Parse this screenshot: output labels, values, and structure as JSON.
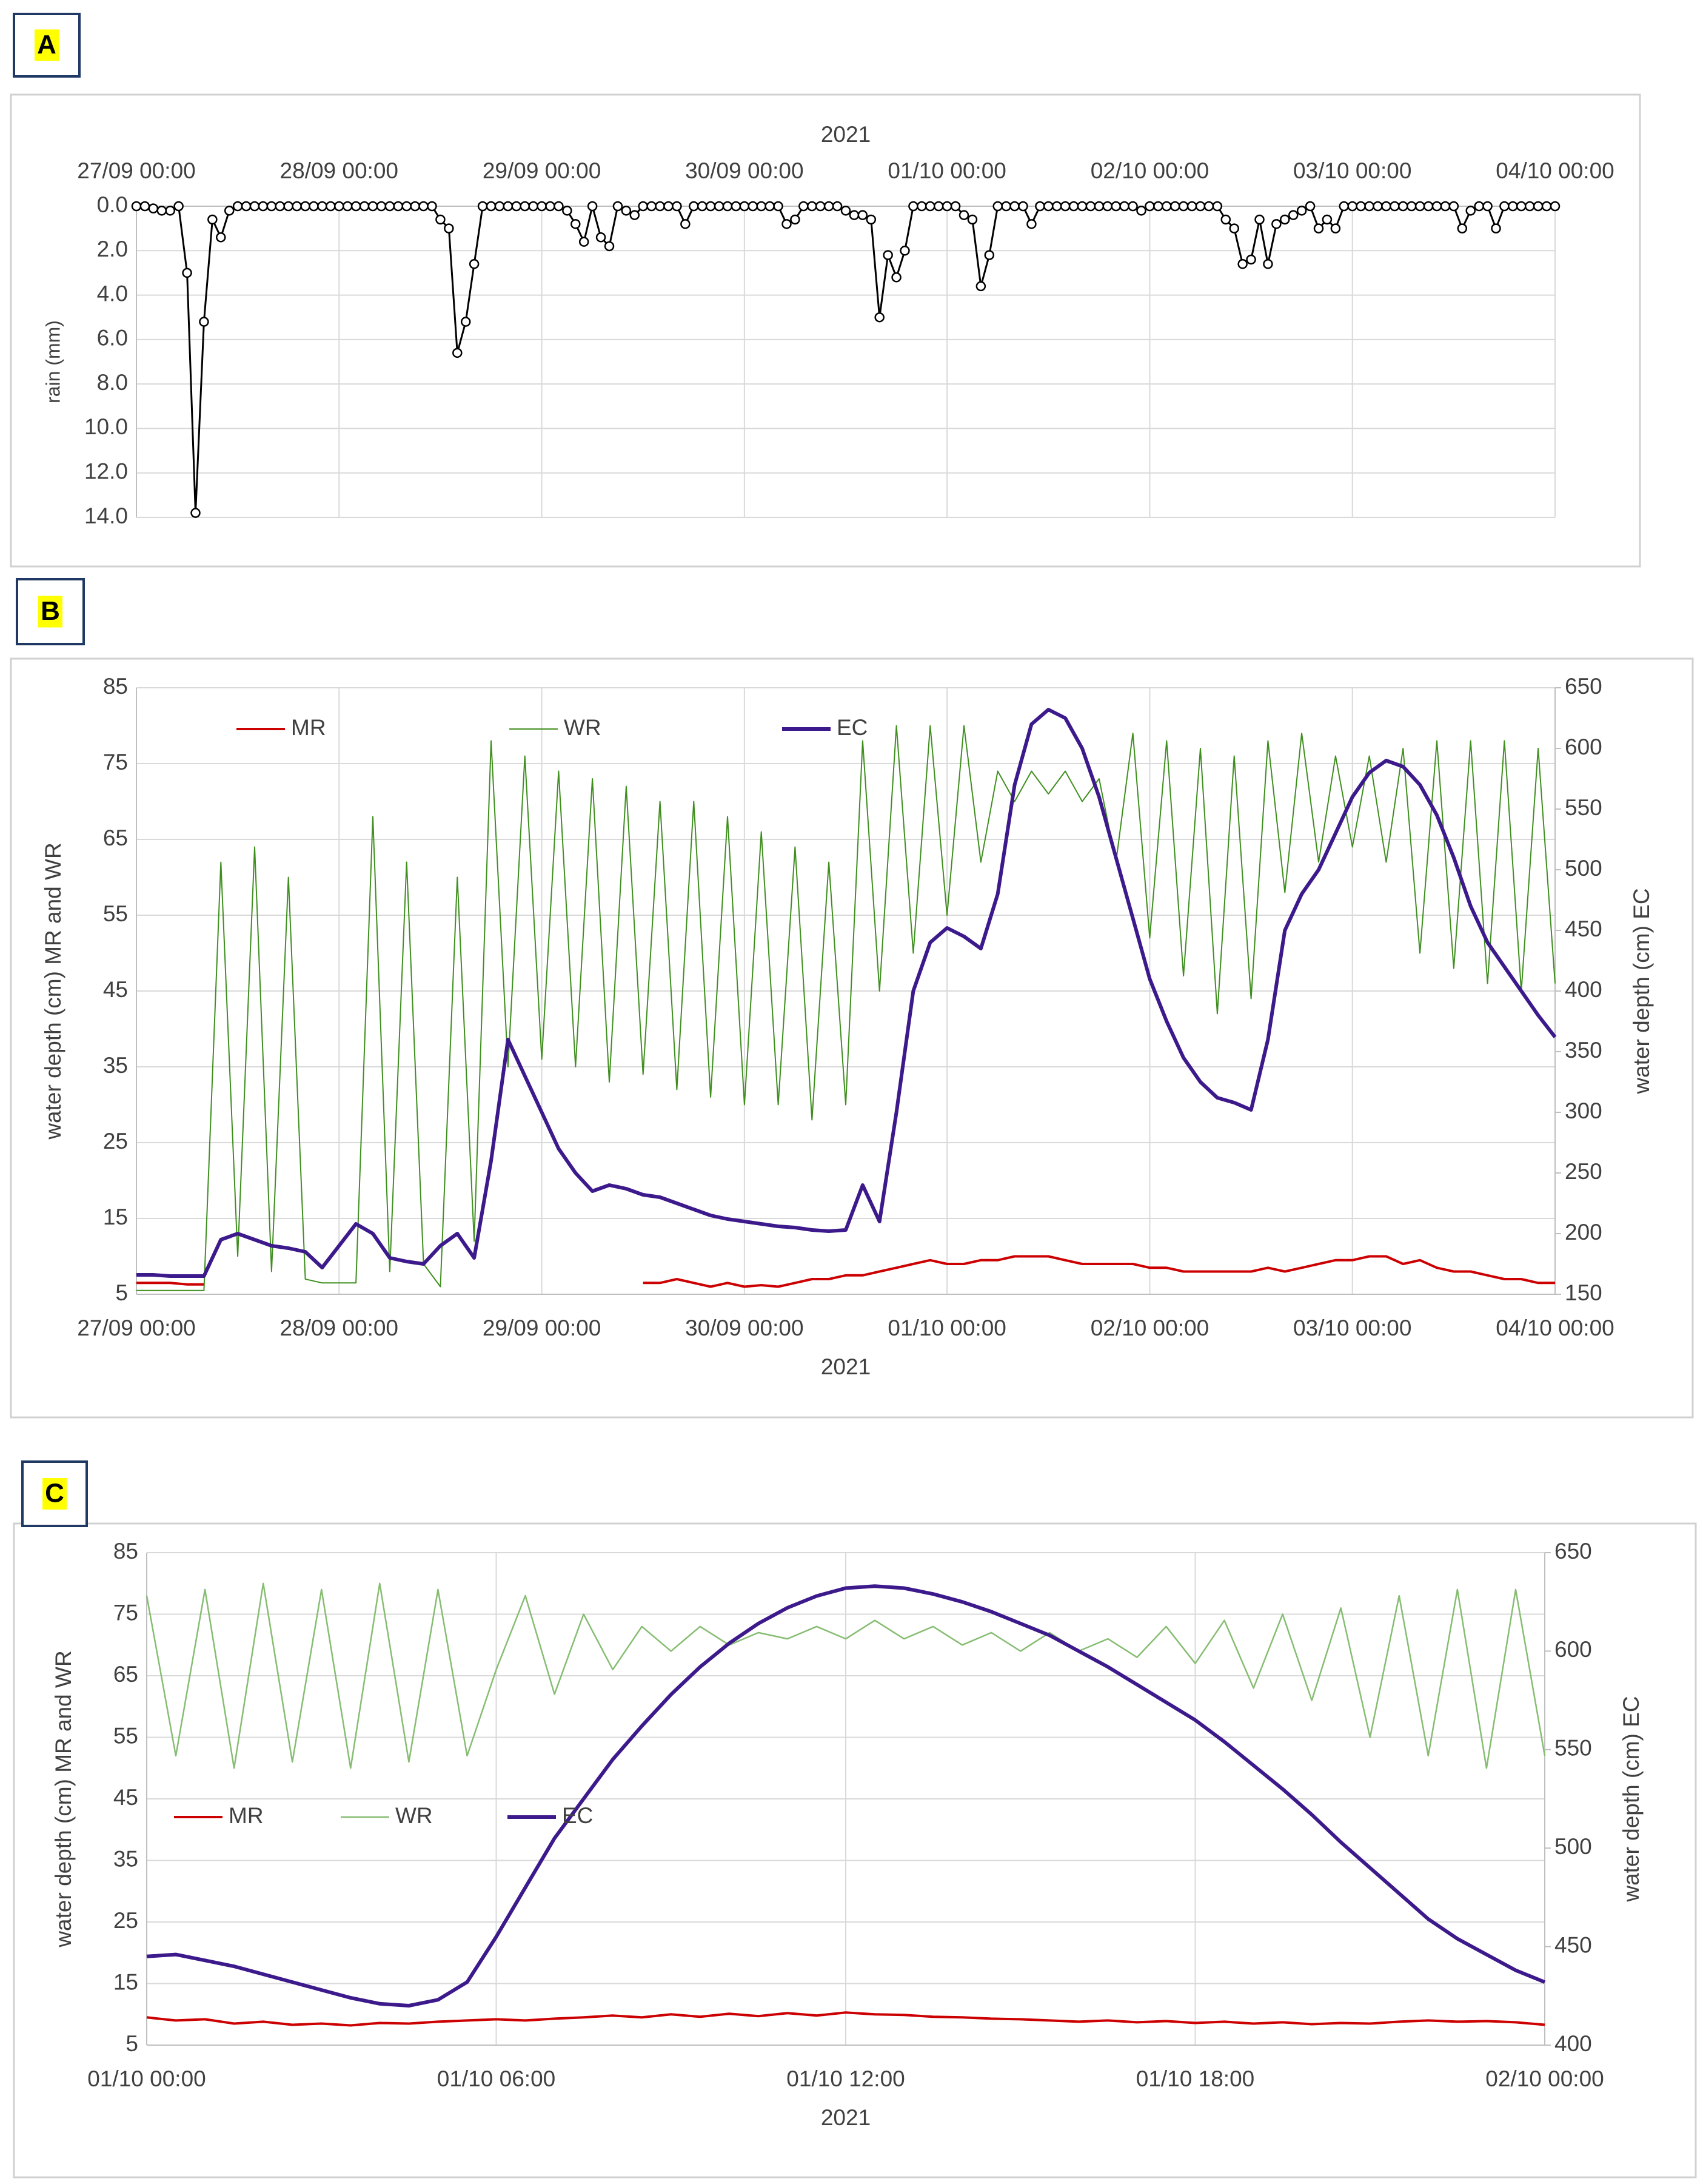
{
  "chart_data": [
    {
      "type": "line",
      "panel": "A",
      "x_title": "2021",
      "y_title": "rain (mm)",
      "xaxis_position": "top",
      "y_inverted": true,
      "grid": true,
      "markers": true,
      "xlim": [
        0,
        168
      ],
      "xticks": [
        {
          "value": 0,
          "label": "27/09 00:00"
        },
        {
          "value": 24,
          "label": "28/09 00:00"
        },
        {
          "value": 48,
          "label": "29/09 00:00"
        },
        {
          "value": 72,
          "label": "30/09 00:00"
        },
        {
          "value": 96,
          "label": "01/10 00:00"
        },
        {
          "value": 120,
          "label": "02/10 00:00"
        },
        {
          "value": 144,
          "label": "03/10 00:00"
        },
        {
          "value": 168,
          "label": "04/10 00:00"
        }
      ],
      "ylim": [
        0,
        14
      ],
      "yticks": [
        {
          "value": 0,
          "label": "0.0"
        },
        {
          "value": 2,
          "label": "2.0"
        },
        {
          "value": 4,
          "label": "4.0"
        },
        {
          "value": 6,
          "label": "6.0"
        },
        {
          "value": 8,
          "label": "8.0"
        },
        {
          "value": 10,
          "label": "10.0"
        },
        {
          "value": 12,
          "label": "12.0"
        },
        {
          "value": 14,
          "label": "14.0"
        }
      ],
      "x": [
        0,
        1,
        2,
        3,
        4,
        5,
        6,
        7,
        8,
        9,
        10,
        11,
        12,
        13,
        14,
        15,
        16,
        17,
        18,
        19,
        20,
        21,
        22,
        23,
        24,
        25,
        26,
        27,
        28,
        29,
        30,
        31,
        32,
        33,
        34,
        35,
        36,
        37,
        38,
        39,
        40,
        41,
        42,
        43,
        44,
        45,
        46,
        47,
        48,
        49,
        50,
        51,
        52,
        53,
        54,
        55,
        56,
        57,
        58,
        59,
        60,
        61,
        62,
        63,
        64,
        65,
        66,
        67,
        68,
        69,
        70,
        71,
        72,
        73,
        74,
        75,
        76,
        77,
        78,
        79,
        80,
        81,
        82,
        83,
        84,
        85,
        86,
        87,
        88,
        89,
        90,
        91,
        92,
        93,
        94,
        95,
        96,
        97,
        98,
        99,
        100,
        101,
        102,
        103,
        104,
        105,
        106,
        107,
        108,
        109,
        110,
        111,
        112,
        113,
        114,
        115,
        116,
        117,
        118,
        119,
        120,
        121,
        122,
        123,
        124,
        125,
        126,
        127,
        128,
        129,
        130,
        131,
        132,
        133,
        134,
        135,
        136,
        137,
        138,
        139,
        140,
        141,
        142,
        143,
        144,
        145,
        146,
        147,
        148,
        149,
        150,
        151,
        152,
        153,
        154,
        155,
        156,
        157,
        158,
        159,
        160,
        161,
        162,
        163,
        164,
        165,
        166,
        167,
        168
      ],
      "series": [
        {
          "color": "#000000",
          "values": [
            0,
            0,
            0.1,
            0.2,
            0.2,
            0,
            3.0,
            13.8,
            5.2,
            0.6,
            1.4,
            0.2,
            0,
            0,
            0,
            0,
            0,
            0,
            0,
            0,
            0,
            0,
            0,
            0,
            0,
            0,
            0,
            0,
            0,
            0,
            0,
            0,
            0,
            0,
            0,
            0,
            0.6,
            1.0,
            6.6,
            5.2,
            2.6,
            0,
            0,
            0,
            0,
            0,
            0,
            0,
            0,
            0,
            0,
            0.2,
            0.8,
            1.6,
            0,
            1.4,
            1.8,
            0,
            0.2,
            0.4,
            0,
            0,
            0,
            0,
            0,
            0.8,
            0,
            0,
            0,
            0,
            0,
            0,
            0,
            0,
            0,
            0,
            0,
            0.8,
            0.6,
            0,
            0,
            0,
            0,
            0,
            0.2,
            0.4,
            0.4,
            0.6,
            5.0,
            2.2,
            3.2,
            2.0,
            0,
            0,
            0,
            0,
            0,
            0,
            0.4,
            0.6,
            3.6,
            2.2,
            0,
            0,
            0,
            0,
            0.8,
            0,
            0,
            0,
            0,
            0,
            0,
            0,
            0,
            0,
            0,
            0,
            0,
            0.2,
            0,
            0,
            0,
            0,
            0,
            0,
            0,
            0,
            0,
            0.6,
            1.0,
            2.6,
            2.4,
            0.6,
            2.6,
            0.8,
            0.6,
            0.4,
            0.2,
            0,
            1.0,
            0.6,
            1.0,
            0,
            0,
            0,
            0,
            0,
            0,
            0,
            0,
            0,
            0,
            0,
            0,
            0,
            0,
            1.0,
            0.2,
            0,
            0,
            1.0,
            0,
            0,
            0,
            0,
            0,
            0,
            0
          ]
        }
      ]
    },
    {
      "type": "line",
      "panel": "B",
      "x_title": "2021",
      "y_title": "water depth (cm) MR and WR",
      "y2_title": "water depth (cm) EC",
      "grid": true,
      "legend": "upper left",
      "xlim": [
        0,
        168
      ],
      "xticks": [
        {
          "value": 0,
          "label": "27/09 00:00"
        },
        {
          "value": 24,
          "label": "28/09 00:00"
        },
        {
          "value": 48,
          "label": "29/09 00:00"
        },
        {
          "value": 72,
          "label": "30/09 00:00"
        },
        {
          "value": 96,
          "label": "01/10 00:00"
        },
        {
          "value": 120,
          "label": "02/10 00:00"
        },
        {
          "value": 144,
          "label": "03/10 00:00"
        },
        {
          "value": 168,
          "label": "04/10 00:00"
        }
      ],
      "ylim": [
        5,
        85
      ],
      "yticks": [
        5,
        15,
        25,
        35,
        45,
        55,
        65,
        75,
        85
      ],
      "y2lim": [
        150,
        650
      ],
      "y2ticks": [
        150,
        200,
        250,
        300,
        350,
        400,
        450,
        500,
        550,
        600,
        650
      ],
      "x": [
        0,
        2,
        4,
        6,
        8,
        10,
        12,
        14,
        16,
        18,
        20,
        22,
        24,
        26,
        28,
        30,
        32,
        34,
        36,
        38,
        40,
        42,
        44,
        46,
        48,
        50,
        52,
        54,
        56,
        58,
        60,
        62,
        64,
        66,
        68,
        70,
        72,
        74,
        76,
        78,
        80,
        82,
        84,
        86,
        88,
        90,
        92,
        94,
        96,
        98,
        100,
        102,
        104,
        106,
        108,
        110,
        112,
        114,
        116,
        118,
        120,
        122,
        124,
        126,
        128,
        130,
        132,
        134,
        136,
        138,
        140,
        142,
        144,
        146,
        148,
        150,
        152,
        154,
        156,
        158,
        160,
        162,
        164,
        166,
        168
      ],
      "series": [
        {
          "name": "MR",
          "color": "#cc0000",
          "width": 4,
          "values": [
            6.5,
            6.5,
            6.5,
            6.3,
            6.3,
            null,
            null,
            null,
            null,
            null,
            null,
            null,
            null,
            null,
            null,
            null,
            null,
            null,
            null,
            null,
            null,
            null,
            null,
            null,
            null,
            null,
            null,
            null,
            null,
            null,
            6.5,
            6.5,
            7,
            6.5,
            6,
            6.5,
            6,
            6.2,
            6,
            6.5,
            7,
            7,
            7.5,
            7.5,
            8,
            8.5,
            9,
            9.5,
            9,
            9,
            9.5,
            9.5,
            10,
            10,
            10,
            9.5,
            9,
            9,
            9,
            9,
            8.5,
            8.5,
            8,
            8,
            8,
            8,
            8,
            8.5,
            8,
            8.5,
            9,
            9.5,
            9.5,
            10,
            10,
            9,
            9.5,
            8.5,
            8,
            8,
            7.5,
            7,
            7,
            6.5,
            6.5
          ]
        },
        {
          "name": "WR",
          "color": "#3f8f1f",
          "width": 2,
          "values": [
            5.5,
            5.5,
            5.5,
            5.5,
            5.5,
            62,
            10,
            64,
            8,
            60,
            7,
            6.5,
            6.5,
            6.5,
            68,
            8,
            62,
            9,
            6,
            60,
            12,
            78,
            35,
            76,
            36,
            74,
            35,
            73,
            33,
            72,
            34,
            70,
            32,
            70,
            31,
            68,
            30,
            66,
            30,
            64,
            28,
            62,
            30,
            78,
            45,
            80,
            50,
            80,
            55,
            80,
            62,
            74,
            70,
            74,
            71,
            74,
            70,
            73,
            62,
            79,
            52,
            78,
            47,
            77,
            42,
            76,
            44,
            78,
            58,
            79,
            62,
            76,
            64,
            76,
            62,
            77,
            50,
            78,
            48,
            78,
            46,
            78,
            45,
            77,
            46
          ]
        },
        {
          "name": "EC",
          "color": "#3d1a8c",
          "width": 6,
          "axis": "y2",
          "values": [
            166,
            166,
            165,
            165,
            165,
            195,
            200,
            195,
            190,
            188,
            185,
            172,
            190,
            208,
            200,
            180,
            177,
            175,
            190,
            200,
            180,
            260,
            360,
            330,
            300,
            270,
            250,
            235,
            240,
            237,
            232,
            230,
            225,
            220,
            215,
            212,
            210,
            208,
            206,
            205,
            203,
            202,
            203,
            240,
            210,
            300,
            400,
            440,
            452,
            445,
            435,
            480,
            570,
            620,
            632,
            625,
            600,
            560,
            510,
            460,
            410,
            375,
            345,
            325,
            312,
            308,
            302,
            360,
            450,
            480,
            500,
            530,
            560,
            580,
            590,
            585,
            570,
            545,
            510,
            470,
            440,
            420,
            400,
            380,
            362
          ]
        }
      ]
    },
    {
      "type": "line",
      "panel": "C",
      "x_title": "2021",
      "y_title": "water depth (cm) MR and WR",
      "y2_title": "water depth (cm) EC",
      "grid": true,
      "legend": "center left",
      "xlim": [
        0,
        24
      ],
      "xticks": [
        {
          "value": 0,
          "label": "01/10 00:00"
        },
        {
          "value": 6,
          "label": "01/10 06:00"
        },
        {
          "value": 12,
          "label": "01/10 12:00"
        },
        {
          "value": 18,
          "label": "01/10 18:00"
        },
        {
          "value": 24,
          "label": "02/10 00:00"
        }
      ],
      "ylim": [
        5,
        85
      ],
      "yticks": [
        5,
        15,
        25,
        35,
        45,
        55,
        65,
        75,
        85
      ],
      "y2lim": [
        400,
        650
      ],
      "y2ticks": [
        400,
        450,
        500,
        550,
        600,
        650
      ],
      "x": [
        0,
        0.5,
        1,
        1.5,
        2,
        2.5,
        3,
        3.5,
        4,
        4.5,
        5,
        5.5,
        6,
        6.5,
        7,
        7.5,
        8,
        8.5,
        9,
        9.5,
        10,
        10.5,
        11,
        11.5,
        12,
        12.5,
        13,
        13.5,
        14,
        14.5,
        15,
        15.5,
        16,
        16.5,
        17,
        17.5,
        18,
        18.5,
        19,
        19.5,
        20,
        20.5,
        21,
        21.5,
        22,
        22.5,
        23,
        23.5,
        24
      ],
      "series": [
        {
          "name": "MR",
          "color": "#cc0000",
          "width": 4,
          "values": [
            9.5,
            9,
            9.2,
            8.5,
            8.8,
            8.3,
            8.5,
            8.2,
            8.6,
            8.5,
            8.8,
            9,
            9.2,
            9,
            9.3,
            9.5,
            9.8,
            9.5,
            10,
            9.6,
            10.1,
            9.7,
            10.2,
            9.8,
            10.3,
            10,
            9.9,
            9.6,
            9.5,
            9.3,
            9.2,
            9,
            8.8,
            9,
            8.7,
            8.9,
            8.6,
            8.8,
            8.5,
            8.7,
            8.4,
            8.6,
            8.5,
            8.8,
            9,
            8.8,
            8.9,
            8.7,
            8.3
          ]
        },
        {
          "name": "WR",
          "color": "#86bd72",
          "width": 2.5,
          "values": [
            78,
            52,
            79,
            50,
            80,
            51,
            79,
            50,
            80,
            51,
            79,
            52,
            66,
            78,
            62,
            75,
            66,
            73,
            69,
            73,
            70,
            72,
            71,
            73,
            71,
            74,
            71,
            73,
            70,
            72,
            69,
            72,
            69,
            71,
            68,
            73,
            67,
            74,
            63,
            75,
            61,
            76,
            55,
            78,
            52,
            79,
            50,
            79,
            52
          ]
        },
        {
          "name": "EC",
          "color": "#3d1a8c",
          "width": 6,
          "axis": "y2",
          "values": [
            445,
            446,
            443,
            440,
            436,
            432,
            428,
            424,
            421,
            420,
            423,
            432,
            455,
            480,
            505,
            525,
            545,
            562,
            578,
            592,
            604,
            614,
            622,
            628,
            632,
            633,
            632,
            629,
            625,
            620,
            614,
            608,
            600,
            592,
            583,
            574,
            565,
            554,
            542,
            530,
            517,
            503,
            490,
            477,
            464,
            454,
            446,
            438,
            432
          ]
        }
      ]
    }
  ]
}
